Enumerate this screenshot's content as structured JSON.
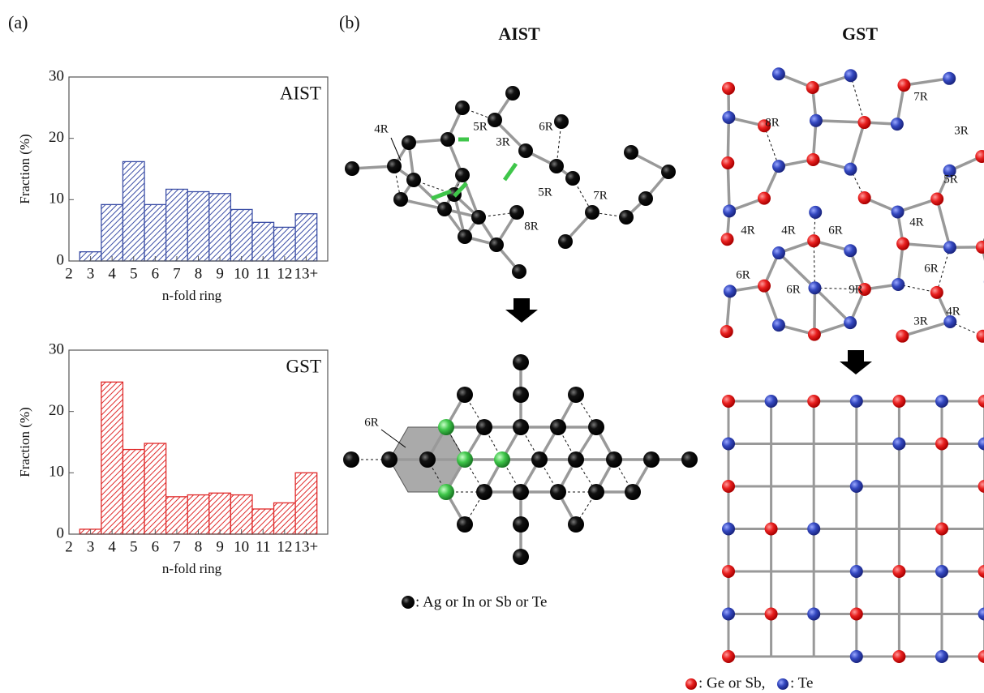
{
  "panel_labels": [
    "(a)",
    "(b)"
  ],
  "chart_data": [
    {
      "type": "histogram",
      "annotation": "AIST",
      "xlabel": "n-fold ring",
      "ylabel": "Fraction (%)",
      "color": "#3b4ea6",
      "bins": [
        2.5,
        3.5,
        4.5,
        5.5,
        6.5,
        7.5,
        8.5,
        9.5,
        10.5,
        11.5,
        12.5,
        13.5
      ],
      "values": [
        1.5,
        9.2,
        16.2,
        9.2,
        11.7,
        11.3,
        11.0,
        8.4,
        6.3,
        5.5,
        7.7
      ],
      "xlim": [
        2,
        14
      ],
      "ylim": [
        0,
        30
      ],
      "xticks": [
        2,
        3,
        4,
        5,
        6,
        7,
        8,
        9,
        10,
        11,
        12,
        {
          "value": 13,
          "label": "13+"
        }
      ],
      "yticks": [
        0,
        10,
        20,
        30
      ]
    },
    {
      "type": "histogram",
      "annotation": "GST",
      "xlabel": "n-fold ring",
      "ylabel": "Fraction (%)",
      "color": "#e02a2a",
      "bins": [
        2.5,
        3.5,
        4.5,
        5.5,
        6.5,
        7.5,
        8.5,
        9.5,
        10.5,
        11.5,
        12.5,
        13.5
      ],
      "values": [
        0.8,
        24.8,
        13.8,
        14.8,
        6.1,
        6.4,
        6.7,
        6.4,
        4.1,
        5.1,
        10.0
      ],
      "xlim": [
        2,
        14
      ],
      "ylim": [
        0,
        30
      ],
      "xticks": [
        2,
        3,
        4,
        5,
        6,
        7,
        8,
        9,
        10,
        11,
        12,
        {
          "value": 13,
          "label": "13+"
        }
      ],
      "yticks": [
        0,
        10,
        20,
        30
      ]
    }
  ],
  "diagram": {
    "aist_title": "AIST",
    "gst_title": "GST",
    "aist_amorphous_rings": [
      "4R",
      "5R",
      "3R",
      "6R",
      "5R",
      "7R",
      "8R"
    ],
    "aist_crystal_rings": [
      "6R"
    ],
    "gst_amorphous_rings": [
      "8R",
      "7R",
      "3R",
      "5R",
      "4R",
      "4R",
      "6R",
      "4R",
      "6R",
      "6R",
      "6R",
      "9R",
      "3R",
      "4R"
    ],
    "aist_legend": ": Ag or In or Sb or Te",
    "gst_legend_gesb": ": Ge or Sb,",
    "gst_legend_te": ": Te"
  }
}
